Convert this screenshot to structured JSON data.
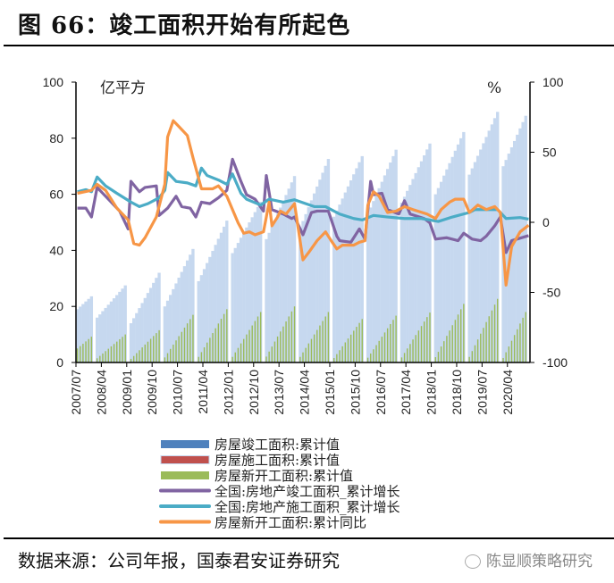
{
  "title": "图 66：竣工面积开始有所起色",
  "source": "数据来源：公司年报，国泰君安证券研究",
  "watermark": "陈显顺策略研究",
  "colors": {
    "completion_area": "#4f81bd",
    "construction_area": "#c0504d",
    "construction_bar": "#c6d8ef",
    "new_start_area": "#9bbb59",
    "completion_yoy": "#8064a2",
    "construction_yoy": "#4bacc6",
    "new_start_yoy": "#f79646"
  },
  "chart_data": {
    "type": "bar+line",
    "left_unit": "亿平方",
    "right_unit": "%",
    "left_ylim": [
      0,
      100
    ],
    "right_ylim": [
      -100,
      100
    ],
    "left_ticks": [
      "100",
      "80",
      "60",
      "40",
      "20",
      "0"
    ],
    "right_ticks": [
      "100",
      "50",
      "0",
      "-50",
      "-100"
    ],
    "x_start": "2007/07",
    "x_unit": "month_offset",
    "x_count": 161,
    "x_ticks": [
      "2007/07",
      "2008/04",
      "2009/01",
      "2009/10",
      "2010/07",
      "2011/04",
      "2012/01",
      "2012/10",
      "2013/07",
      "2014/04",
      "2015/01",
      "2015/10",
      "2016/07",
      "2017/04",
      "2018/01",
      "2018/10",
      "2019/07",
      "2020/04"
    ],
    "legend": [
      "房屋竣工面积:累计值",
      "房屋施工面积:累计值",
      "房屋新开工面积:累计值",
      "全国:房地产竣工面积_累计增长",
      "全国:房地产施工面积_累计增长",
      "房屋新开工面积:累计同比"
    ],
    "bars_construction_cumulative": [
      {
        "year": 2007,
        "months": [
          7,
          12
        ],
        "start": 19,
        "end": 23.6
      },
      {
        "year": 2008,
        "months": [
          2,
          12
        ],
        "start": 16,
        "end": 27.5
      },
      {
        "year": 2009,
        "months": [
          2,
          12
        ],
        "start": 14,
        "end": 32
      },
      {
        "year": 2010,
        "months": [
          2,
          12
        ],
        "start": 20,
        "end": 40.5
      },
      {
        "year": 2011,
        "months": [
          2,
          12
        ],
        "start": 29,
        "end": 50.6
      },
      {
        "year": 2012,
        "months": [
          2,
          12
        ],
        "start": 39,
        "end": 57.3
      },
      {
        "year": 2013,
        "months": [
          2,
          12
        ],
        "start": 44,
        "end": 66.5
      },
      {
        "year": 2014,
        "months": [
          2,
          12
        ],
        "start": 48,
        "end": 72.6
      },
      {
        "year": 2015,
        "months": [
          2,
          12
        ],
        "start": 52,
        "end": 73.6
      },
      {
        "year": 2016,
        "months": [
          2,
          12
        ],
        "start": 53,
        "end": 75.9
      },
      {
        "year": 2017,
        "months": [
          2,
          12
        ],
        "start": 57,
        "end": 78.1
      },
      {
        "year": 2018,
        "months": [
          2,
          12
        ],
        "start": 60,
        "end": 82.2
      },
      {
        "year": 2019,
        "months": [
          2,
          12
        ],
        "start": 67,
        "end": 89.4
      },
      {
        "year": 2020,
        "months": [
          2,
          10
        ],
        "start": 70,
        "end": 88
      }
    ],
    "bars_new_start_cumulative": [
      {
        "year": 2007,
        "months": [
          7,
          12
        ],
        "start": 5,
        "end": 9.2
      },
      {
        "year": 2008,
        "months": [
          2,
          12
        ],
        "start": 1.5,
        "end": 10
      },
      {
        "year": 2009,
        "months": [
          2,
          12
        ],
        "start": 1.3,
        "end": 11.5
      },
      {
        "year": 2010,
        "months": [
          2,
          12
        ],
        "start": 1.8,
        "end": 17
      },
      {
        "year": 2011,
        "months": [
          2,
          12
        ],
        "start": 2,
        "end": 19
      },
      {
        "year": 2012,
        "months": [
          2,
          12
        ],
        "start": 2,
        "end": 18
      },
      {
        "year": 2013,
        "months": [
          2,
          12
        ],
        "start": 2.1,
        "end": 20
      },
      {
        "year": 2014,
        "months": [
          2,
          12
        ],
        "start": 2,
        "end": 18
      },
      {
        "year": 2015,
        "months": [
          2,
          12
        ],
        "start": 1.6,
        "end": 15.5
      },
      {
        "year": 2016,
        "months": [
          2,
          12
        ],
        "start": 1.7,
        "end": 16.7
      },
      {
        "year": 2017,
        "months": [
          2,
          12
        ],
        "start": 1.8,
        "end": 17.8
      },
      {
        "year": 2018,
        "months": [
          2,
          12
        ],
        "start": 1.9,
        "end": 20.9
      },
      {
        "year": 2019,
        "months": [
          2,
          12
        ],
        "start": 2,
        "end": 22.7
      },
      {
        "year": 2020,
        "months": [
          2,
          10
        ],
        "start": 1.6,
        "end": 18
      }
    ],
    "line_completion_yoy": [
      [
        0,
        10.1
      ],
      [
        3,
        10.1
      ],
      [
        5,
        3.8
      ],
      [
        7,
        24.9
      ],
      [
        10,
        18.6
      ],
      [
        12,
        14.4
      ],
      [
        15,
        8.0
      ],
      [
        18,
        -4.7
      ],
      [
        19,
        29.2
      ],
      [
        22,
        21.8
      ],
      [
        24,
        24.9
      ],
      [
        28,
        26.0
      ],
      [
        29,
        4.9
      ],
      [
        32,
        10.1
      ],
      [
        35,
        18.6
      ],
      [
        37,
        11.2
      ],
      [
        40,
        10.1
      ],
      [
        42,
        3.8
      ],
      [
        44,
        14.4
      ],
      [
        47,
        13.3
      ],
      [
        50,
        17.5
      ],
      [
        53,
        22.8
      ],
      [
        55,
        45.0
      ],
      [
        58,
        29.2
      ],
      [
        60,
        19.7
      ],
      [
        63,
        16.5
      ],
      [
        66,
        8.0
      ],
      [
        67,
        33.4
      ],
      [
        69,
        9.1
      ],
      [
        73,
        5.9
      ],
      [
        76,
        2.7
      ],
      [
        77,
        3.8
      ],
      [
        80,
        -8.9
      ],
      [
        83,
        7.0
      ],
      [
        85,
        8.0
      ],
      [
        89,
        8.0
      ],
      [
        92,
        -9.9
      ],
      [
        93,
        -13.1
      ],
      [
        97,
        -14.2
      ],
      [
        100,
        -4.7
      ],
      [
        102,
        -12.0
      ],
      [
        104,
        29.2
      ],
      [
        105,
        19.7
      ],
      [
        108,
        20.7
      ],
      [
        110,
        9.1
      ],
      [
        114,
        5.9
      ],
      [
        116,
        15.4
      ],
      [
        118,
        5.9
      ],
      [
        123,
        2.7
      ],
      [
        125,
        -0.4
      ],
      [
        127,
        -12.0
      ],
      [
        131,
        -11.0
      ],
      [
        135,
        -13.1
      ],
      [
        137,
        -7.8
      ],
      [
        140,
        -12.0
      ],
      [
        143,
        -13.1
      ],
      [
        145,
        -9.9
      ],
      [
        148,
        -2.5
      ],
      [
        150,
        3.8
      ],
      [
        152,
        -21.6
      ],
      [
        154,
        -13.1
      ],
      [
        160,
        -9.5
      ]
    ],
    "line_construction_yoy": [
      [
        0,
        21.8
      ],
      [
        3,
        23.3
      ],
      [
        5,
        21.8
      ],
      [
        7,
        32.3
      ],
      [
        10,
        26.0
      ],
      [
        14,
        20.7
      ],
      [
        19,
        14.4
      ],
      [
        22,
        11.2
      ],
      [
        25,
        13.3
      ],
      [
        29,
        17.5
      ],
      [
        31,
        22.8
      ],
      [
        32,
        35.5
      ],
      [
        35,
        29.2
      ],
      [
        39,
        28.1
      ],
      [
        42,
        26.0
      ],
      [
        44,
        38.7
      ],
      [
        46,
        33.4
      ],
      [
        50,
        30.2
      ],
      [
        53,
        27.1
      ],
      [
        55,
        34.5
      ],
      [
        58,
        20.7
      ],
      [
        60,
        16.5
      ],
      [
        65,
        12.3
      ],
      [
        68,
        16.5
      ],
      [
        73,
        14.4
      ],
      [
        77,
        16.1
      ],
      [
        81,
        13.3
      ],
      [
        84,
        11.2
      ],
      [
        88,
        11.2
      ],
      [
        93,
        5.9
      ],
      [
        98,
        2.7
      ],
      [
        101,
        1.7
      ],
      [
        105,
        4.9
      ],
      [
        110,
        3.8
      ],
      [
        116,
        2.7
      ],
      [
        122,
        2.7
      ],
      [
        128,
        0.6
      ],
      [
        133,
        3.8
      ],
      [
        139,
        7.0
      ],
      [
        141,
        9.1
      ],
      [
        149,
        9.1
      ],
      [
        152,
        2.7
      ],
      [
        157,
        3.4
      ],
      [
        160,
        2.3
      ]
    ],
    "line_new_start_yoy": [
      [
        0,
        20.7
      ],
      [
        5,
        22.8
      ],
      [
        7,
        27.1
      ],
      [
        10,
        22.8
      ],
      [
        14,
        10.1
      ],
      [
        18,
        1.7
      ],
      [
        20,
        -15.2
      ],
      [
        22,
        -16.3
      ],
      [
        24,
        -11.0
      ],
      [
        28,
        3.8
      ],
      [
        31,
        27.1
      ],
      [
        32,
        60.9
      ],
      [
        34,
        72.5
      ],
      [
        36,
        68.3
      ],
      [
        39,
        61.9
      ],
      [
        41,
        46.1
      ],
      [
        44,
        23.9
      ],
      [
        48,
        23.9
      ],
      [
        50,
        26.0
      ],
      [
        53,
        18.6
      ],
      [
        57,
        -0.4
      ],
      [
        59,
        -7.8
      ],
      [
        61,
        -6.8
      ],
      [
        63,
        -8.9
      ],
      [
        66,
        -6.8
      ],
      [
        68,
        14.4
      ],
      [
        69,
        -2.5
      ],
      [
        71,
        3.8
      ],
      [
        72,
        8.0
      ],
      [
        74,
        5.9
      ],
      [
        77,
        13.3
      ],
      [
        80,
        -26.8
      ],
      [
        82,
        -21.6
      ],
      [
        85,
        -13.1
      ],
      [
        88,
        -6.8
      ],
      [
        90,
        -13.1
      ],
      [
        92,
        -19.0
      ],
      [
        94,
        -16.3
      ],
      [
        98,
        -16.3
      ],
      [
        100,
        -14.2
      ],
      [
        102,
        -13.1
      ],
      [
        103,
        12.3
      ],
      [
        105,
        21.8
      ],
      [
        107,
        18.6
      ],
      [
        110,
        7.0
      ],
      [
        113,
        8.0
      ],
      [
        116,
        11.2
      ],
      [
        119,
        9.1
      ],
      [
        124,
        5.9
      ],
      [
        127,
        2.7
      ],
      [
        129,
        9.1
      ],
      [
        132,
        14.4
      ],
      [
        134,
        16.5
      ],
      [
        137,
        16.5
      ],
      [
        139,
        7.0
      ],
      [
        142,
        12.3
      ],
      [
        145,
        9.1
      ],
      [
        148,
        11.2
      ],
      [
        150,
        7.0
      ],
      [
        152,
        -44.8
      ],
      [
        154,
        -17.3
      ],
      [
        157,
        -6.8
      ],
      [
        160,
        -2.1
      ]
    ]
  }
}
